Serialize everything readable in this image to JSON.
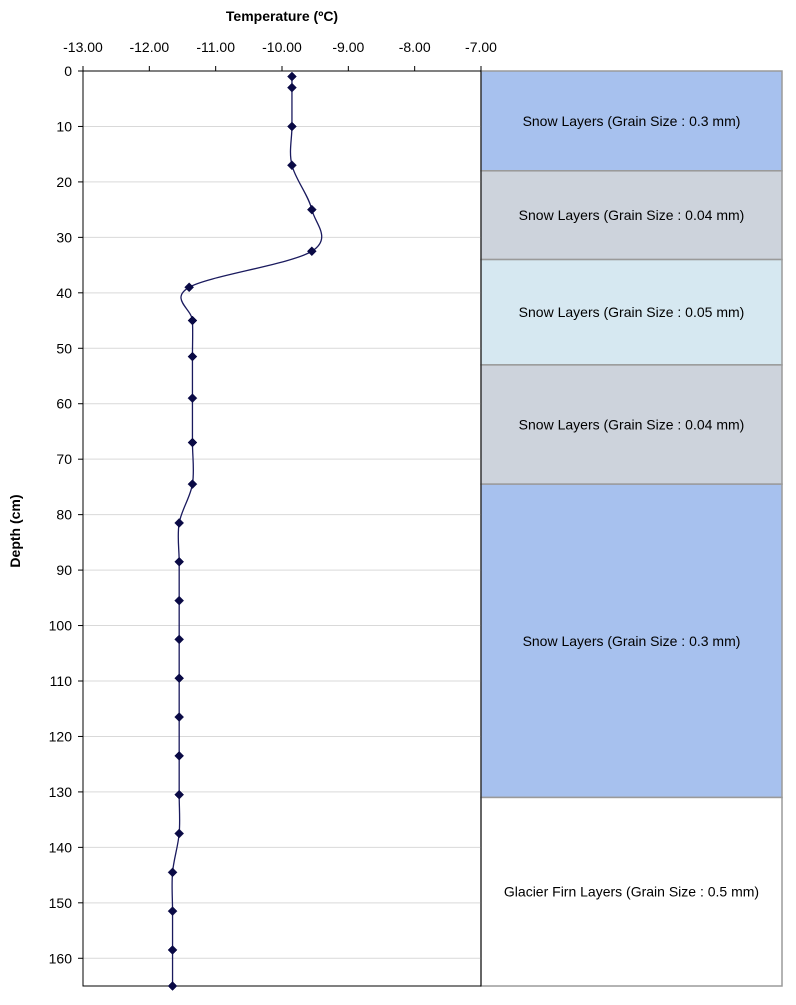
{
  "chart_data": {
    "type": "line",
    "xlabel": "Temperature (ºC)",
    "ylabel": "Depth (cm)",
    "xlim": [
      -13.0,
      -7.0
    ],
    "ylim": [
      0,
      165
    ],
    "x_ticks": [
      "-13.00",
      "-12.00",
      "-11.00",
      "-10.00",
      "-9.00",
      "-8.00",
      "-7.00"
    ],
    "x_tick_values": [
      -13,
      -12,
      -11,
      -10,
      -9,
      -8,
      -7
    ],
    "y_ticks": [
      "0",
      "10",
      "20",
      "30",
      "40",
      "50",
      "60",
      "70",
      "80",
      "90",
      "100",
      "110",
      "120",
      "130",
      "140",
      "150",
      "160"
    ],
    "y_tick_values": [
      0,
      10,
      20,
      30,
      40,
      50,
      60,
      70,
      80,
      90,
      100,
      110,
      120,
      130,
      140,
      150,
      160
    ],
    "x_axis_position": "top",
    "y_reversed": true,
    "grid": true,
    "series": [
      {
        "color": "#1a1a5e",
        "marker": "diamond",
        "marker_color": "#0a0a45",
        "points": [
          {
            "temp": -9.85,
            "depth": 1
          },
          {
            "temp": -9.85,
            "depth": 3
          },
          {
            "temp": -9.85,
            "depth": 10
          },
          {
            "temp": -9.85,
            "depth": 17
          },
          {
            "temp": -9.55,
            "depth": 25
          },
          {
            "temp": -9.55,
            "depth": 32.5
          },
          {
            "temp": -11.4,
            "depth": 39
          },
          {
            "temp": -11.35,
            "depth": 45
          },
          {
            "temp": -11.35,
            "depth": 51.5
          },
          {
            "temp": -11.35,
            "depth": 59
          },
          {
            "temp": -11.35,
            "depth": 67
          },
          {
            "temp": -11.35,
            "depth": 74.5
          },
          {
            "temp": -11.55,
            "depth": 81.5
          },
          {
            "temp": -11.55,
            "depth": 88.5
          },
          {
            "temp": -11.55,
            "depth": 95.5
          },
          {
            "temp": -11.55,
            "depth": 102.5
          },
          {
            "temp": -11.55,
            "depth": 109.5
          },
          {
            "temp": -11.55,
            "depth": 116.5
          },
          {
            "temp": -11.55,
            "depth": 123.5
          },
          {
            "temp": -11.55,
            "depth": 130.5
          },
          {
            "temp": -11.55,
            "depth": 137.5
          },
          {
            "temp": -11.65,
            "depth": 144.5
          },
          {
            "temp": -11.65,
            "depth": 151.5
          },
          {
            "temp": -11.65,
            "depth": 158.5
          },
          {
            "temp": -11.65,
            "depth": 165
          }
        ]
      }
    ],
    "layers": [
      {
        "label": "Snow Layers (Grain Size : 0.3 mm)",
        "top": 0,
        "bottom": 18,
        "color": "#a7c1ee"
      },
      {
        "label": "Snow Layers (Grain Size : 0.04 mm)",
        "top": 18,
        "bottom": 34,
        "color": "#cdd3dc"
      },
      {
        "label": "Snow Layers (Grain Size : 0.05 mm)",
        "top": 34,
        "bottom": 53,
        "color": "#d6e8f1"
      },
      {
        "label": "Snow Layers (Grain Size : 0.04 mm)",
        "top": 53,
        "bottom": 74.5,
        "color": "#cdd3dc"
      },
      {
        "label": "Snow Layers (Grain Size : 0.3 mm)",
        "top": 74.5,
        "bottom": 131,
        "color": "#a7c1ee"
      },
      {
        "label": "Glacier Firn Layers (Grain Size : 0.5 mm)",
        "top": 131,
        "bottom": 165,
        "color": "#ffffff"
      }
    ]
  }
}
